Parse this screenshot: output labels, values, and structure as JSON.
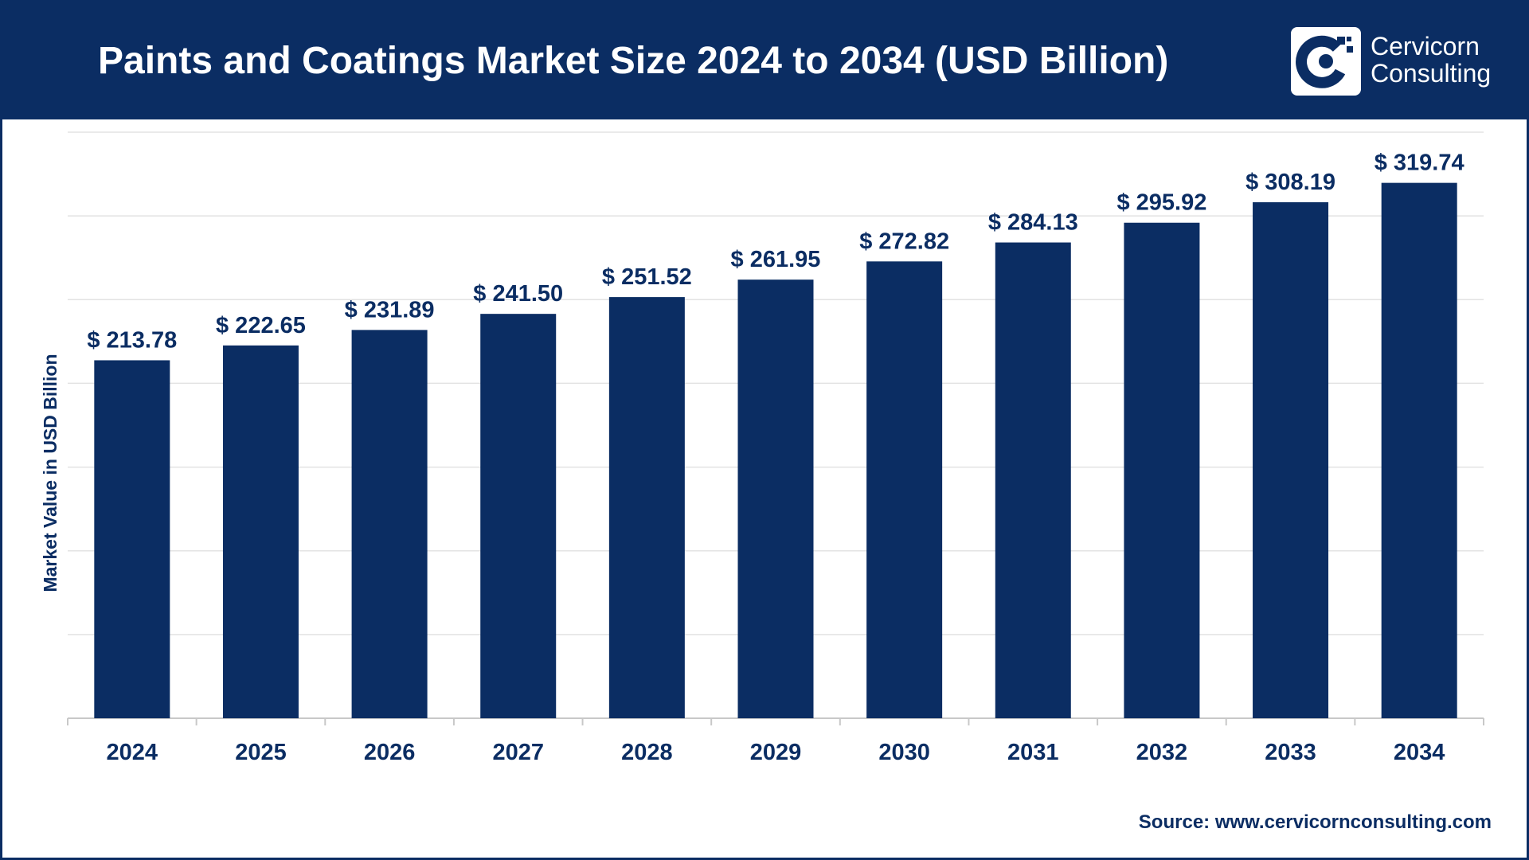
{
  "header": {
    "title": "Paints and Coatings Market Size 2024 to 2034 (USD Billion)",
    "logo_line1": "Cervicorn",
    "logo_line2": "Consulting",
    "background_color": "#0b2d63"
  },
  "source": "Source: www.cervicornconsulting.com",
  "chart_data": {
    "type": "bar",
    "title": "Paints and Coatings Market Size 2024 to 2034 (USD Billion)",
    "xlabel": "",
    "ylabel": "Market Value in USD Billion",
    "categories": [
      "2024",
      "2025",
      "2026",
      "2027",
      "2028",
      "2029",
      "2030",
      "2031",
      "2032",
      "2033",
      "2034"
    ],
    "values": [
      213.78,
      222.65,
      231.89,
      241.5,
      251.52,
      261.95,
      272.82,
      284.13,
      295.92,
      308.19,
      319.74
    ],
    "data_labels": [
      "$ 213.78",
      "$ 222.65",
      "$ 231.89",
      "$ 241.50",
      "$ 251.52",
      "$ 261.95",
      "$ 272.82",
      "$ 284.13",
      "$ 295.92",
      "$ 308.19",
      "$ 319.74"
    ],
    "ylim": [
      0,
      350
    ],
    "grid": true,
    "legend": "none",
    "bar_color": "#0b2d63"
  }
}
